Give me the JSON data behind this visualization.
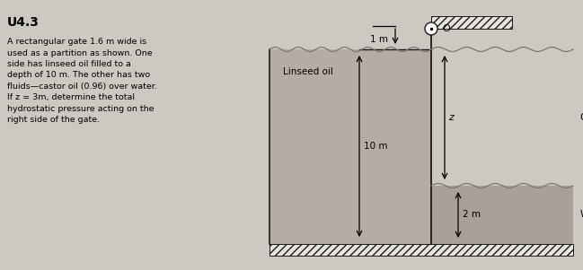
{
  "bg_color": "#ccc8c2",
  "title": "U4.3",
  "problem_text": "A rectangular gate 1.6 m wide is\nused as a partition as shown. One\nside has linseed oil filled to a\ndepth of 10 m. The other has two\nfluids—castor oil (0.96) over water.\nIf z = 3m, determine the total\nhydrostatic pressure acting on the\nright side of the gate.",
  "linseed_fill": "#b5ada3",
  "castor_fill": "#cdc8c0",
  "water_fill": "#aaa098",
  "hatch_bg": "#e8e4de",
  "line_color": "#1a1a1a",
  "label_linseed": "Linseed oil",
  "label_castor": "Castor oil",
  "label_water": "Water",
  "label_10m": "10 m",
  "label_2m": "2 m",
  "label_1m": "1 m",
  "label_z": "z",
  "label_O": "O",
  "wave_color": "#777770",
  "text_color": "#1a1a1a"
}
